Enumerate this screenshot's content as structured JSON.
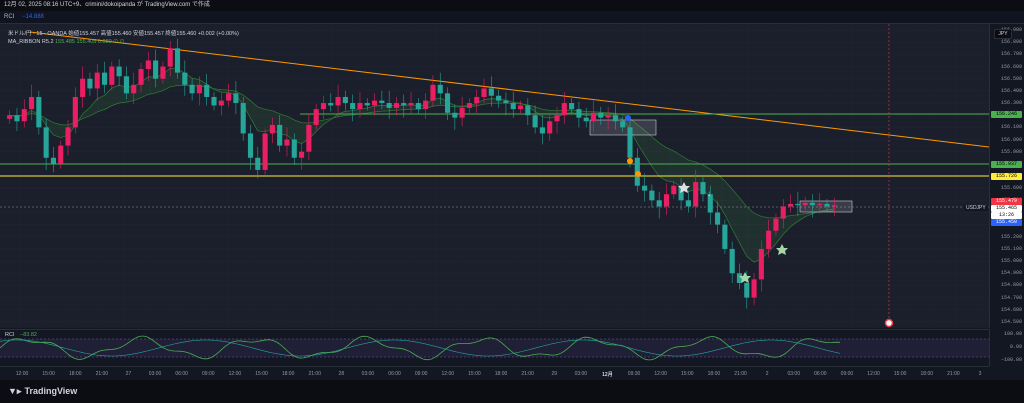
{
  "topbar": {
    "text": "12月 02, 2025 08:16 UTC+9、crimini/dokoipanda が TradingView.com で作成"
  },
  "rci_header": {
    "label": "RCI",
    "value": "−14.888"
  },
  "legend": {
    "line1": "米ドル/円 · 15 · OANDA  始値155.457  高値155.460  安値155.457  終値155.460  +0.002 (+0.00%)",
    "line2_label": "MA_RIBBON R5.2",
    "line2_values": "155.485  155.405  0.080  ∅  ∅"
  },
  "price_axis": {
    "currency": "JPY",
    "ticks": [
      "156.900",
      "156.800",
      "156.700",
      "156.600",
      "156.500",
      "156.400",
      "156.300",
      "156.200",
      "156.100",
      "156.000",
      "155.900",
      "155.800",
      "155.700",
      "155.600",
      "155.500",
      "155.400",
      "155.300",
      "155.200",
      "155.100",
      "155.000",
      "154.900",
      "154.800",
      "154.700",
      "154.600",
      "154.500"
    ],
    "labels": {
      "green_upper": "156.246",
      "green_lower": "155.937",
      "yellow": "155.726",
      "ask": "155.479",
      "last": "155.465",
      "countdown": "13:26",
      "bid": "155.450"
    },
    "pair_tag": "USDJPY"
  },
  "sub_axis": {
    "ticks": [
      "100.00",
      "0.00",
      "−100.00"
    ]
  },
  "sub_pane": {
    "label": "RCI",
    "value": "−83.82"
  },
  "time_axis": {
    "labels": [
      "12:00",
      "15:00",
      "18:00",
      "21:00",
      "27",
      "03:00",
      "06:00",
      "09:00",
      "12:00",
      "15:00",
      "18:00",
      "21:00",
      "28",
      "03:00",
      "06:00",
      "09:00",
      "12:00",
      "15:00",
      "18:00",
      "21:00",
      "29",
      "03:00",
      "12月",
      "09:30",
      "12:00",
      "15:00",
      "18:00",
      "21:00",
      "2",
      "03:00",
      "06:00",
      "09:00",
      "12:00",
      "15:00",
      "18:00",
      "21:00",
      "3"
    ]
  },
  "footer": {
    "brand": "TradingView"
  },
  "colors": {
    "bg": "#1b1f2b",
    "up": "#e91e63",
    "down": "#26a69a",
    "trend": "#ff9800",
    "hline_green": "#4caf50",
    "hline_yellow": "#ffeb3b",
    "ask": "#f23645",
    "bid": "#2962ff"
  },
  "chart_data": {
    "type": "candlestick",
    "symbol": "USDJPY",
    "interval": "15",
    "ylim": [
      154.45,
      156.95
    ],
    "closes": [
      156.2,
      156.15,
      156.25,
      156.35,
      156.1,
      155.85,
      155.8,
      155.95,
      156.1,
      156.35,
      156.5,
      156.42,
      156.55,
      156.45,
      156.6,
      156.52,
      156.38,
      156.45,
      156.58,
      156.65,
      156.5,
      156.6,
      156.75,
      156.55,
      156.45,
      156.38,
      156.45,
      156.35,
      156.28,
      156.32,
      156.38,
      156.3,
      156.05,
      155.85,
      155.75,
      156.05,
      156.12,
      155.95,
      156.0,
      155.85,
      155.9,
      156.12,
      156.25,
      156.3,
      156.28,
      156.35,
      156.3,
      156.25,
      156.3,
      156.28,
      156.32,
      156.3,
      156.26,
      156.3,
      156.28,
      156.3,
      156.25,
      156.32,
      156.45,
      156.38,
      156.22,
      156.18,
      156.26,
      156.3,
      156.35,
      156.42,
      156.36,
      156.32,
      156.3,
      156.25,
      156.28,
      156.2,
      156.1,
      156.05,
      156.15,
      156.2,
      156.3,
      156.25,
      156.18,
      156.15,
      156.22,
      156.18,
      156.2,
      156.15,
      156.1,
      155.85,
      155.62,
      155.58,
      155.5,
      155.45,
      155.55,
      155.62,
      155.5,
      155.45,
      155.65,
      155.55,
      155.4,
      155.3,
      155.1,
      154.9,
      154.82,
      154.7,
      154.85,
      155.1,
      155.25,
      155.35,
      155.45,
      155.47,
      155.46,
      155.48,
      155.46,
      155.47,
      155.45,
      155.46
    ]
  }
}
